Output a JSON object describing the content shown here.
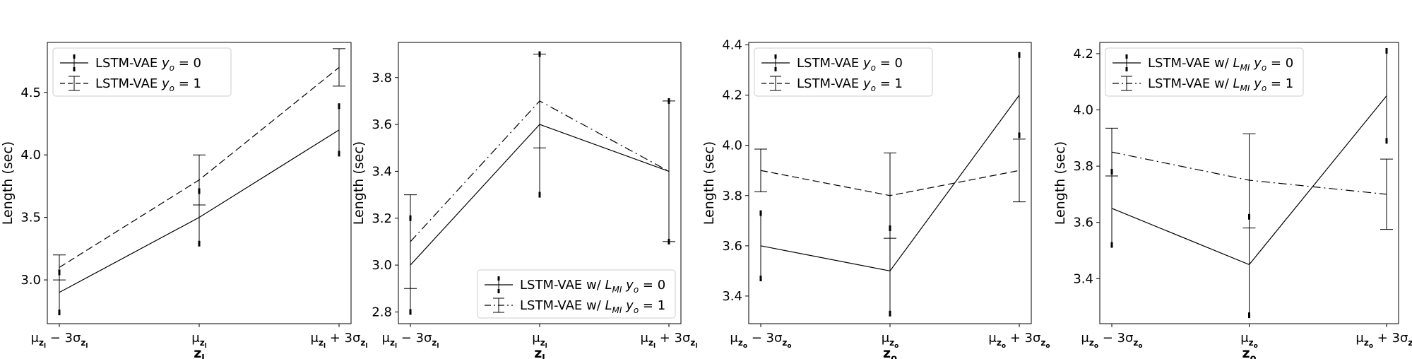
{
  "chart_data": [
    {
      "type": "line",
      "xlabel": "z_l",
      "ylabel": "Length (sec)",
      "categories": [
        "μ_zl − 3σ_zl",
        "μ_zl",
        "μ_zl + 3σ_zl"
      ],
      "ylim": [
        2.65,
        4.9
      ],
      "yticks": [
        3.0,
        3.5,
        4.0,
        4.5
      ],
      "legend_position": "upper-left",
      "series": [
        {
          "name": "LSTM-VAE y_o = 0",
          "style": "solid",
          "values": [
            2.9,
            3.5,
            4.2
          ],
          "err_low": [
            2.74,
            3.29,
            4.01
          ],
          "err_high": [
            3.06,
            3.71,
            4.39
          ],
          "caps": false
        },
        {
          "name": "LSTM-VAE y_o = 1",
          "style": "dashed",
          "values": [
            3.1,
            3.8,
            4.7
          ],
          "err_low": [
            3.0,
            3.6,
            4.55
          ],
          "err_high": [
            3.2,
            4.0,
            4.85
          ],
          "caps": true
        }
      ]
    },
    {
      "type": "line",
      "xlabel": "z_l",
      "ylabel": "Length (sec)",
      "categories": [
        "μ_zl − 3σ_zl",
        "μ_zl",
        "μ_zl + 3σ_zl"
      ],
      "ylim": [
        2.75,
        3.95
      ],
      "yticks": [
        2.8,
        3.0,
        3.2,
        3.4,
        3.6,
        3.8
      ],
      "legend_position": "lower-right",
      "series": [
        {
          "name": "LSTM-VAE w/ L_MI y_o = 0",
          "style": "solid",
          "values": [
            3.0,
            3.6,
            3.4
          ],
          "err_low": [
            2.8,
            3.3,
            3.1
          ],
          "err_high": [
            3.2,
            3.9,
            3.7
          ],
          "caps": false
        },
        {
          "name": "LSTM-VAE w/ L_MI y_o = 1",
          "style": "dashdot",
          "values": [
            3.1,
            3.7,
            3.4
          ],
          "err_low": [
            2.9,
            3.5,
            3.1
          ],
          "err_high": [
            3.3,
            3.9,
            3.7
          ],
          "caps": true
        }
      ]
    },
    {
      "type": "line",
      "xlabel": "z_o",
      "ylabel": "Length (sec)",
      "categories": [
        "μ_zo − 3σ_zo",
        "μ_zo",
        "μ_zo + 3σ_zo"
      ],
      "ylim": [
        3.29,
        4.41
      ],
      "yticks": [
        3.4,
        3.6,
        3.8,
        4.0,
        4.2,
        4.4
      ],
      "legend_position": "upper-left",
      "series": [
        {
          "name": "LSTM-VAE y_o = 0",
          "style": "solid",
          "values": [
            3.6,
            3.5,
            4.2
          ],
          "err_low": [
            3.47,
            3.33,
            4.04
          ],
          "err_high": [
            3.73,
            3.67,
            4.36
          ],
          "caps": false
        },
        {
          "name": "LSTM-VAE y_o = 1",
          "style": "dashed",
          "values": [
            3.9,
            3.8,
            3.9
          ],
          "err_low": [
            3.815,
            3.63,
            3.775
          ],
          "err_high": [
            3.985,
            3.97,
            4.025
          ],
          "caps": true
        }
      ]
    },
    {
      "type": "line",
      "xlabel": "z_o",
      "ylabel": "Length (sec)",
      "categories": [
        "μ_zo − 3σ_zo",
        "μ_zo",
        "μ_zo + 3σ_zo"
      ],
      "ylim": [
        3.24,
        4.24
      ],
      "yticks": [
        3.4,
        3.6,
        3.8,
        4.0,
        4.2
      ],
      "legend_position": "upper-left",
      "series": [
        {
          "name": "LSTM-VAE w/ L_MI y_o = 0",
          "style": "solid",
          "values": [
            3.65,
            3.45,
            4.05
          ],
          "err_low": [
            3.52,
            3.27,
            3.89
          ],
          "err_high": [
            3.78,
            3.62,
            4.21
          ],
          "caps": false
        },
        {
          "name": "LSTM-VAE w/ L_MI y_o = 1",
          "style": "dashdot",
          "values": [
            3.85,
            3.75,
            3.7
          ],
          "err_low": [
            3.765,
            3.58,
            3.575
          ],
          "err_high": [
            3.935,
            3.915,
            3.825
          ],
          "caps": true
        }
      ]
    }
  ]
}
